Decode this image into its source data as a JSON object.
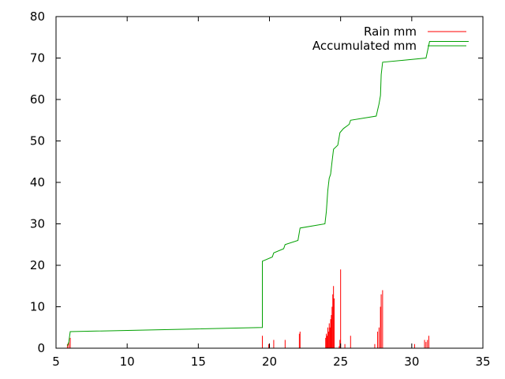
{
  "chart_data": {
    "type": "line",
    "xlim": [
      5,
      35
    ],
    "ylim": [
      0,
      80
    ],
    "x_ticks": [
      5,
      10,
      15,
      20,
      25,
      30,
      35
    ],
    "y_ticks": [
      0,
      10,
      20,
      30,
      40,
      50,
      60,
      70,
      80
    ],
    "x_tick_labels": [
      "5",
      "10",
      "15",
      "20",
      "25",
      "30",
      "35"
    ],
    "y_tick_labels": [
      "0",
      "10",
      "20",
      "30",
      "40",
      "50",
      "60",
      "70",
      "80"
    ],
    "grid": false,
    "legend_position": "top-right",
    "series": [
      {
        "name": "Rain mm",
        "style": "impulses",
        "color": "#ff0000",
        "points": [
          [
            5.8,
            1
          ],
          [
            5.9,
            1.5
          ],
          [
            6.0,
            2.5
          ],
          [
            19.5,
            3
          ],
          [
            19.95,
            1
          ],
          [
            20.3,
            2
          ],
          [
            21.1,
            2
          ],
          [
            22.1,
            3.5
          ],
          [
            22.15,
            4
          ],
          [
            23.95,
            2.5
          ],
          [
            24.0,
            3.5
          ],
          [
            24.05,
            3
          ],
          [
            24.1,
            5
          ],
          [
            24.15,
            4
          ],
          [
            24.2,
            6
          ],
          [
            24.25,
            5
          ],
          [
            24.3,
            7
          ],
          [
            24.35,
            8
          ],
          [
            24.4,
            10
          ],
          [
            24.45,
            13
          ],
          [
            24.5,
            15
          ],
          [
            24.55,
            12
          ],
          [
            24.9,
            0.5
          ],
          [
            24.95,
            2
          ],
          [
            25.0,
            19
          ],
          [
            25.3,
            1
          ],
          [
            25.7,
            3
          ],
          [
            27.4,
            1
          ],
          [
            27.6,
            4
          ],
          [
            27.7,
            5
          ],
          [
            27.8,
            10
          ],
          [
            27.85,
            13
          ],
          [
            27.95,
            14
          ],
          [
            30.2,
            1
          ],
          [
            30.9,
            2
          ],
          [
            31.0,
            1.5
          ],
          [
            31.1,
            2
          ],
          [
            31.2,
            3
          ]
        ]
      },
      {
        "name": "Accumulated mm",
        "style": "line",
        "color": "#00a000",
        "points": [
          [
            5.8,
            0.5
          ],
          [
            5.9,
            1.5
          ],
          [
            6.0,
            4
          ],
          [
            19.5,
            5
          ],
          [
            19.5,
            21
          ],
          [
            20.2,
            22
          ],
          [
            20.3,
            23
          ],
          [
            21.0,
            24
          ],
          [
            21.1,
            25
          ],
          [
            22.0,
            26
          ],
          [
            22.15,
            29
          ],
          [
            23.9,
            30
          ],
          [
            24.0,
            33
          ],
          [
            24.1,
            38
          ],
          [
            24.2,
            41
          ],
          [
            24.3,
            42
          ],
          [
            24.4,
            45
          ],
          [
            24.5,
            48
          ],
          [
            24.8,
            49
          ],
          [
            24.95,
            52
          ],
          [
            25.2,
            53
          ],
          [
            25.6,
            54
          ],
          [
            25.7,
            55
          ],
          [
            27.5,
            56
          ],
          [
            27.7,
            59
          ],
          [
            27.8,
            61
          ],
          [
            27.85,
            66
          ],
          [
            27.95,
            69
          ],
          [
            31.0,
            70
          ],
          [
            31.25,
            74
          ],
          [
            34.0,
            74
          ]
        ]
      }
    ]
  }
}
